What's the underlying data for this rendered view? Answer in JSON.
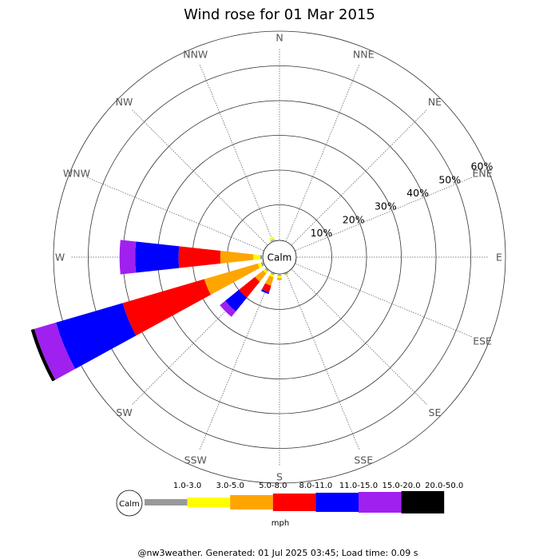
{
  "chart_data": {
    "type": "windrose",
    "title": "Wind rose for 01 Mar 2015",
    "directions": [
      "N",
      "NNE",
      "NE",
      "ENE",
      "E",
      "ESE",
      "SE",
      "SSE",
      "S",
      "SSW",
      "SW",
      "WSW",
      "W",
      "WNW",
      "NW",
      "NNW"
    ],
    "radial_ticks": [
      "10%",
      "20%",
      "30%",
      "40%",
      "50%",
      "60%"
    ],
    "radial_tick_values": [
      10,
      20,
      30,
      40,
      50,
      60
    ],
    "calm_label": "Calm",
    "units": "mph",
    "bins": [
      {
        "label": "1.0-3.0",
        "color": "#999999"
      },
      {
        "label": "3.0-5.0",
        "color": "#ffff00"
      },
      {
        "label": "5.0-8.0",
        "color": "#ffa500"
      },
      {
        "label": "8.0-11.0",
        "color": "#ff0000"
      },
      {
        "label": "11.0-15.0",
        "color": "#0000ff"
      },
      {
        "label": "15.0-20.0",
        "color": "#a020f0"
      },
      {
        "label": "20.0-50.0",
        "color": "#000000"
      }
    ],
    "series_cumulative": {
      "NNW": [
        0.3,
        1.0,
        1.0,
        1.0,
        1.0,
        1.0,
        1.0
      ],
      "W": [
        0.5,
        2.5,
        12.0,
        24.0,
        36.5,
        41.0,
        41.0
      ],
      "WSW": [
        0.5,
        1.5,
        17.5,
        42.0,
        62.0,
        68.5,
        69.5
      ],
      "SW": [
        0.3,
        1.0,
        4.0,
        10.0,
        15.0,
        17.0,
        17.0
      ],
      "SSW": [
        0.3,
        1.0,
        3.5,
        5.5,
        6.0,
        6.0,
        6.0
      ],
      "S": [
        0.3,
        1.0,
        1.5,
        1.5,
        1.5,
        1.5,
        1.5
      ],
      "SSE": [
        0.3,
        0.5,
        0.5,
        0.5,
        0.5,
        0.5,
        0.5
      ]
    },
    "legend_placement": "bottom",
    "footer": "@nw3weather. Generated: 01 Jul 2025 03:45; Load time: 0.09 s"
  }
}
